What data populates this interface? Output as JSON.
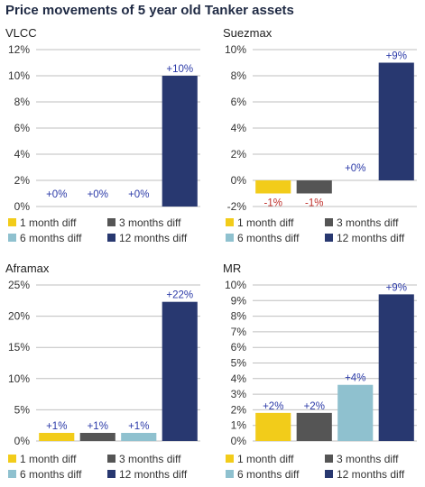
{
  "title": "Price movements of 5 year old Tanker assets",
  "colors": {
    "1 month diff": "#f2cc1a",
    "3 months diff": "#555555",
    "6 months diff": "#8fc1cf",
    "12 months diff": "#283870",
    "positive_label": "#2b3aa8",
    "negative_label": "#c0302b",
    "grid": "#bfbfbf"
  },
  "chart_data": [
    {
      "type": "bar",
      "title": "VLCC",
      "categories": [
        "1 month diff",
        "3 months diff",
        "6 months diff",
        "12 months diff"
      ],
      "values": [
        0,
        0,
        0,
        10
      ],
      "data_labels": [
        "+0%",
        "+0%",
        "+0%",
        "+10%"
      ],
      "ylim": [
        0,
        12
      ],
      "yticks": [
        0,
        2,
        4,
        6,
        8,
        10,
        12
      ],
      "ytick_labels": [
        "0%",
        "2%",
        "4%",
        "6%",
        "8%",
        "10%",
        "12%"
      ],
      "grid": true,
      "legend": [
        "1 month diff",
        "3 months diff",
        "6 months diff",
        "12 months diff"
      ],
      "legend_position": "bottom"
    },
    {
      "type": "bar",
      "title": "Suezmax",
      "categories": [
        "1 month diff",
        "3 months diff",
        "6 months diff",
        "12 months diff"
      ],
      "values": [
        -1,
        -1,
        0,
        9
      ],
      "data_labels": [
        "-1%",
        "-1%",
        "+0%",
        "+9%"
      ],
      "ylim": [
        -2,
        10
      ],
      "yticks": [
        -2,
        0,
        2,
        4,
        6,
        8,
        10
      ],
      "ytick_labels": [
        "-2%",
        "0%",
        "2%",
        "4%",
        "6%",
        "8%",
        "10%"
      ],
      "grid": true,
      "legend": [
        "1 month diff",
        "3 months diff",
        "6 months diff",
        "12 months diff"
      ],
      "legend_position": "bottom"
    },
    {
      "type": "bar",
      "title": "Aframax",
      "categories": [
        "1 month diff",
        "3 months diff",
        "6 months diff",
        "12 months diff"
      ],
      "values": [
        1.3,
        1.3,
        1.3,
        22.3
      ],
      "data_labels": [
        "+1%",
        "+1%",
        "+1%",
        "+22%"
      ],
      "ylim": [
        0,
        25
      ],
      "yticks": [
        0,
        5,
        10,
        15,
        20,
        25
      ],
      "ytick_labels": [
        "0%",
        "5%",
        "10%",
        "15%",
        "20%",
        "25%"
      ],
      "grid": true,
      "legend": [
        "1 month diff",
        "3 months diff",
        "6 months diff",
        "12 months diff"
      ],
      "legend_position": "bottom"
    },
    {
      "type": "bar",
      "title": "MR",
      "categories": [
        "1 month diff",
        "3 months diff",
        "6 months diff",
        "12 months diff"
      ],
      "values": [
        1.8,
        1.8,
        3.6,
        9.4
      ],
      "data_labels": [
        "+2%",
        "+2%",
        "+4%",
        "+9%"
      ],
      "ylim": [
        0,
        10
      ],
      "yticks": [
        0,
        1,
        2,
        3,
        4,
        5,
        6,
        7,
        8,
        9,
        10
      ],
      "ytick_labels": [
        "0%",
        "1%",
        "2%",
        "3%",
        "4%",
        "5%",
        "6%",
        "7%",
        "8%",
        "9%",
        "10%"
      ],
      "grid": true,
      "legend": [
        "1 month diff",
        "3 months diff",
        "6 months diff",
        "12 months diff"
      ],
      "legend_position": "bottom"
    }
  ]
}
